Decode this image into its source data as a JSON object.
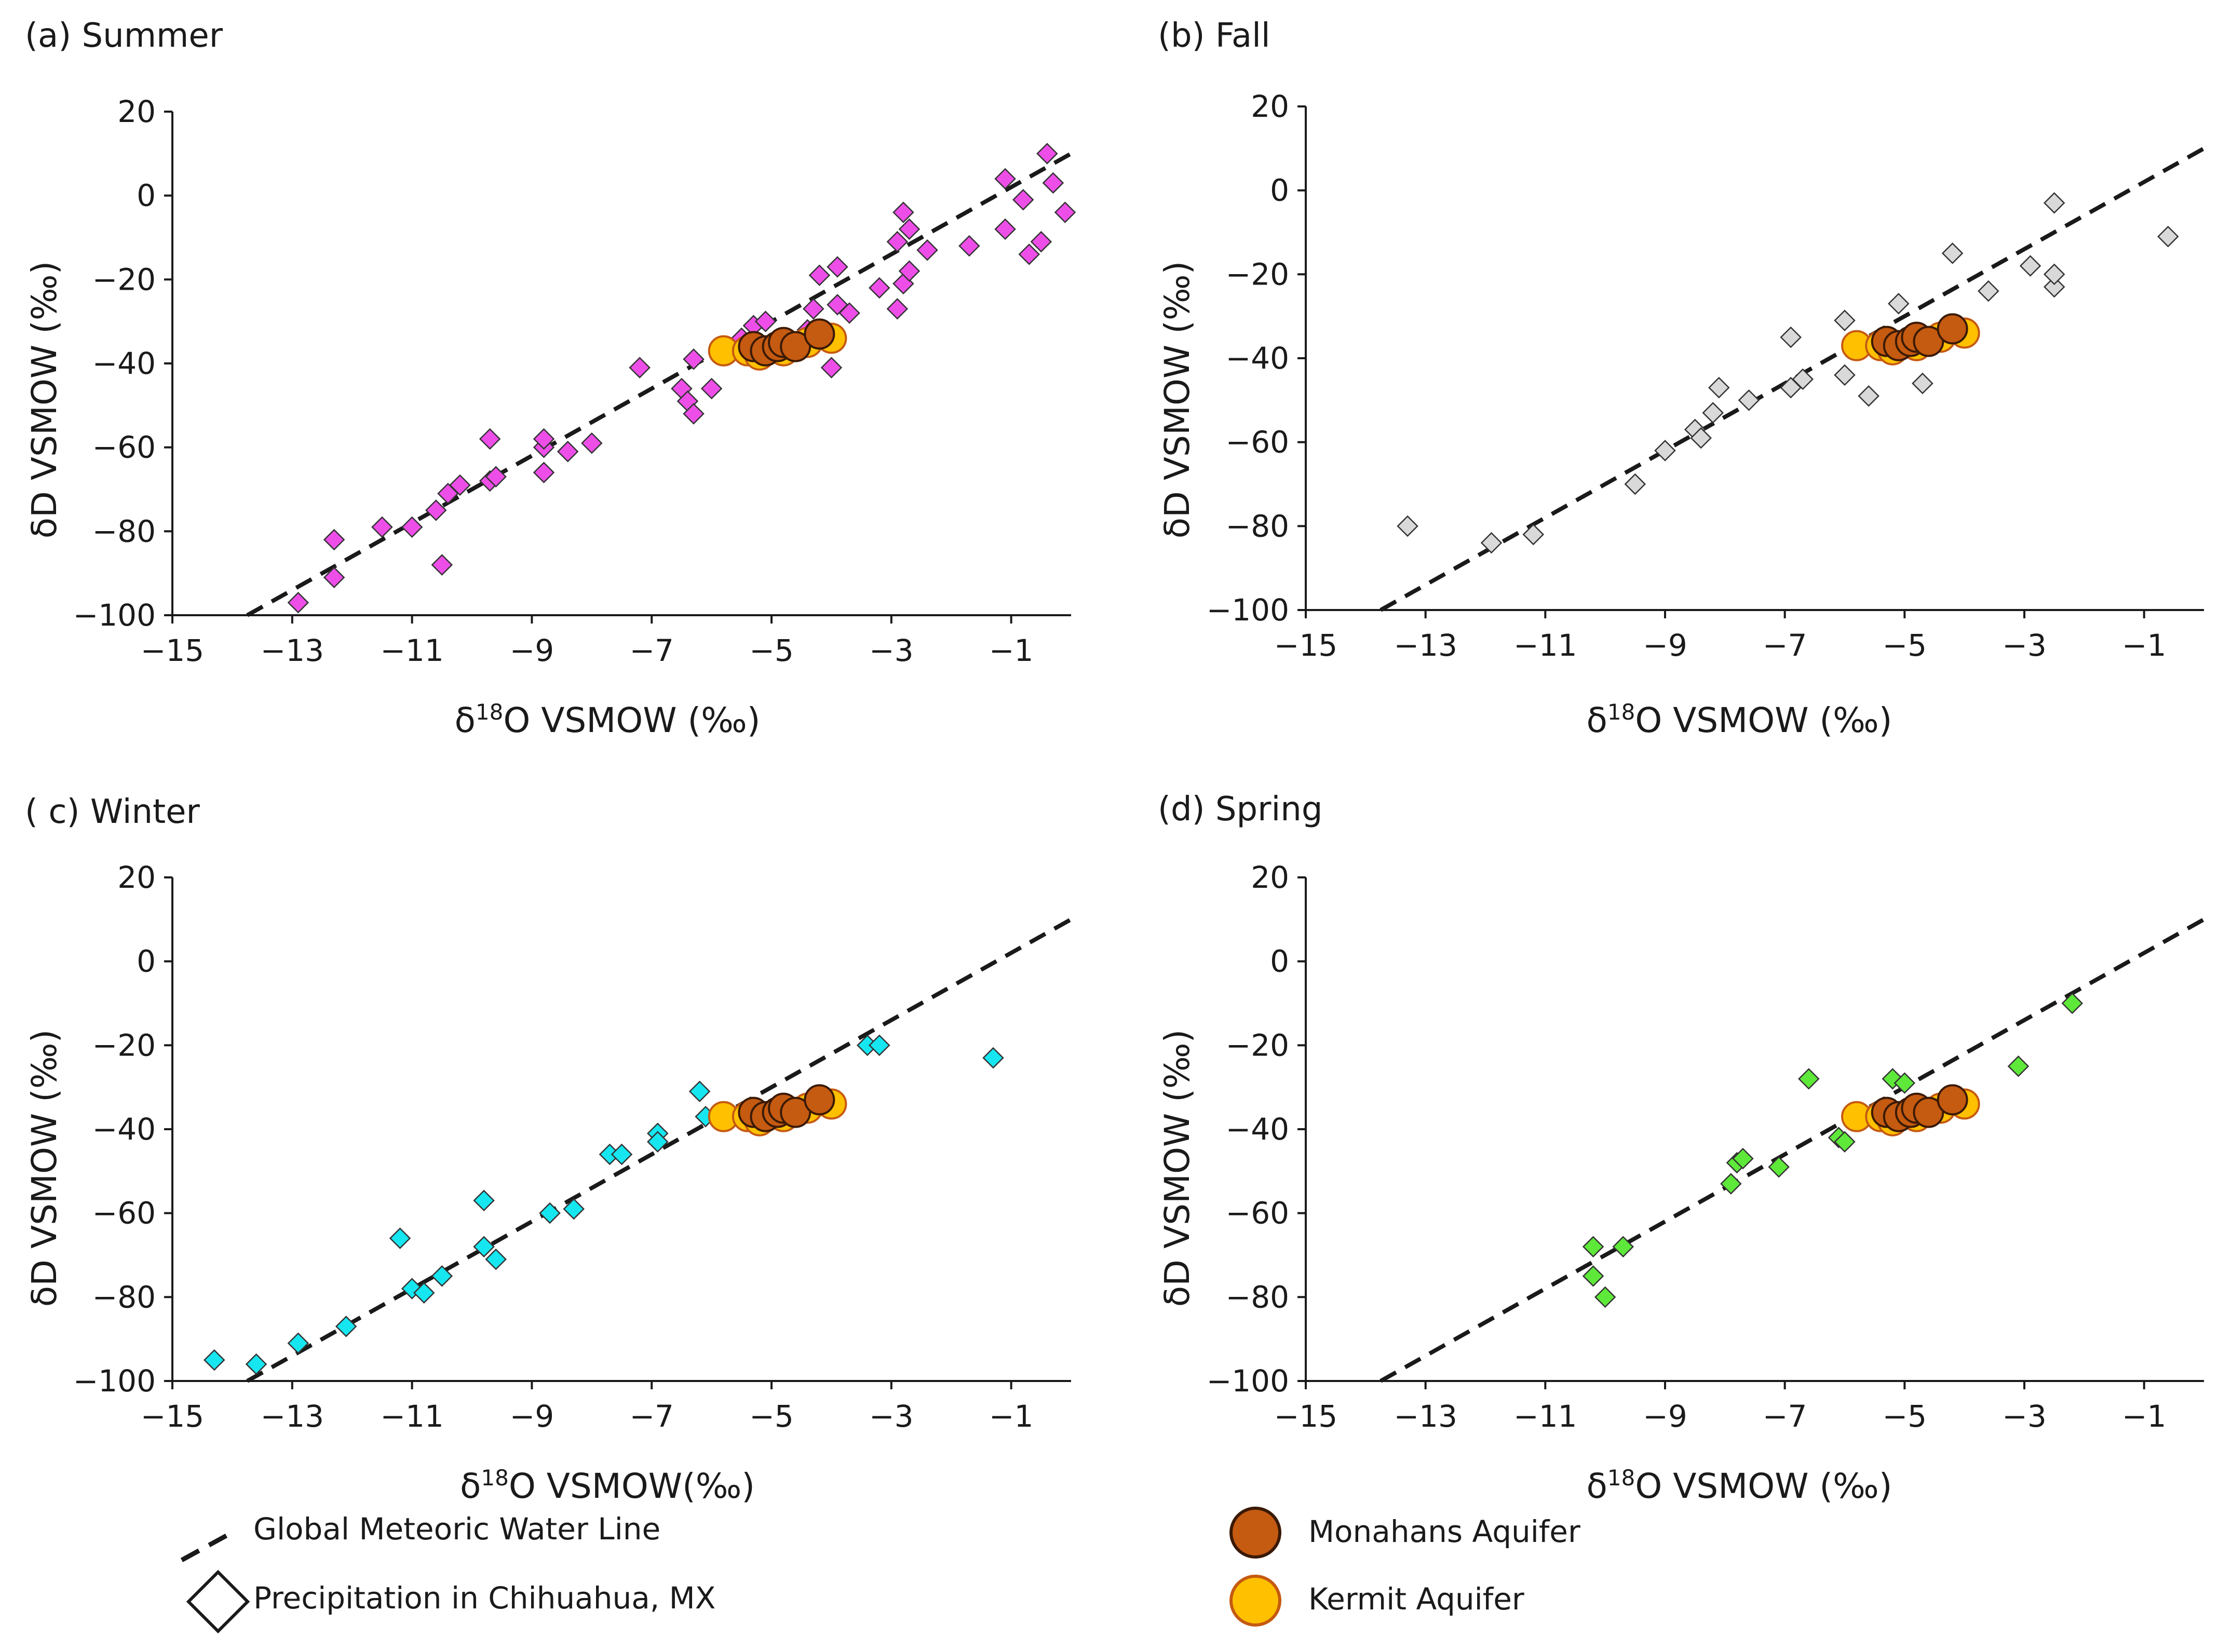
{
  "figure": {
    "legend": {
      "gmwl_label": "Global Meteoric Water Line",
      "precip_label": "Precipitation in Chihuahua, MX",
      "monahans_label": "Monahans Aquifer",
      "kermit_label": "Kermit Aquifer"
    },
    "colors": {
      "monahans_fill": "#c55a11",
      "monahans_stroke": "#3a1a05",
      "kermit_fill": "#ffc000",
      "kermit_stroke": "#c55a11",
      "gmwl": "#1a1a1a"
    }
  },
  "chart_data": [
    {
      "type": "scatter",
      "panel": "(a) Summer",
      "title": "Summer",
      "tag": "(a)",
      "xlabel_prefix": "δ",
      "xlabel_sup": "18",
      "xlabel_suffix": "O VSMOW (‰)",
      "ylabel": "δD VSMOW (‰)",
      "xlim": [
        -15,
        0
      ],
      "ylim": [
        -100,
        20
      ],
      "xticks": [
        -15,
        -13,
        -11,
        -9,
        -7,
        -5,
        -3,
        -1
      ],
      "yticks": [
        20,
        0,
        -20,
        -40,
        -60,
        -80,
        -100
      ],
      "gmwl": {
        "slope": 8,
        "intercept": 10
      },
      "precipitation_color": "#ee4ee8",
      "precipitation": [
        [
          -12.9,
          -97
        ],
        [
          -12.3,
          -91
        ],
        [
          -12.3,
          -82
        ],
        [
          -11.5,
          -79
        ],
        [
          -11.0,
          -79
        ],
        [
          -10.6,
          -75
        ],
        [
          -10.5,
          -88
        ],
        [
          -10.4,
          -71
        ],
        [
          -10.2,
          -69
        ],
        [
          -9.7,
          -68
        ],
        [
          -9.7,
          -58
        ],
        [
          -9.6,
          -67
        ],
        [
          -8.8,
          -66
        ],
        [
          -8.8,
          -60
        ],
        [
          -8.8,
          -58
        ],
        [
          -8.4,
          -61
        ],
        [
          -8.0,
          -59
        ],
        [
          -7.2,
          -41
        ],
        [
          -6.5,
          -46
        ],
        [
          -6.4,
          -49
        ],
        [
          -6.3,
          -39
        ],
        [
          -6.3,
          -52
        ],
        [
          -6.0,
          -46
        ],
        [
          -5.8,
          -37
        ],
        [
          -5.5,
          -34
        ],
        [
          -5.3,
          -31
        ],
        [
          -5.1,
          -30
        ],
        [
          -4.5,
          -34
        ],
        [
          -4.4,
          -32
        ],
        [
          -4.3,
          -27
        ],
        [
          -4.2,
          -19
        ],
        [
          -4.0,
          -41
        ],
        [
          -3.9,
          -17
        ],
        [
          -3.9,
          -26
        ],
        [
          -3.7,
          -28
        ],
        [
          -3.2,
          -22
        ],
        [
          -2.9,
          -27
        ],
        [
          -2.9,
          -11
        ],
        [
          -2.8,
          -4
        ],
        [
          -2.8,
          -21
        ],
        [
          -2.7,
          -18
        ],
        [
          -2.7,
          -8
        ],
        [
          -2.4,
          -13
        ],
        [
          -1.7,
          -12
        ],
        [
          -1.1,
          4
        ],
        [
          -1.1,
          -8
        ],
        [
          -0.8,
          -1
        ],
        [
          -0.7,
          -14
        ],
        [
          -0.5,
          -11
        ],
        [
          -0.4,
          10
        ],
        [
          -0.3,
          3
        ],
        [
          -0.1,
          -4
        ]
      ],
      "kermit": [
        [
          -5.8,
          -37
        ],
        [
          -5.4,
          -37
        ],
        [
          -5.2,
          -38
        ],
        [
          -4.8,
          -37
        ],
        [
          -4.4,
          -35
        ],
        [
          -4.0,
          -34
        ]
      ],
      "monahans": [
        [
          -5.3,
          -36
        ],
        [
          -5.1,
          -37
        ],
        [
          -4.9,
          -36
        ],
        [
          -4.8,
          -35
        ],
        [
          -4.6,
          -36
        ],
        [
          -4.2,
          -33
        ]
      ]
    },
    {
      "type": "scatter",
      "panel": "(b) Fall",
      "title": "Fall",
      "tag": "(b)",
      "xlabel_prefix": "δ",
      "xlabel_sup": "18",
      "xlabel_suffix": "O VSMOW (‰)",
      "ylabel": "δD VSMOW (‰)",
      "xlim": [
        -15,
        0
      ],
      "ylim": [
        -100,
        20
      ],
      "xticks": [
        -15,
        -13,
        -11,
        -9,
        -7,
        -5,
        -3,
        -1
      ],
      "yticks": [
        20,
        0,
        -20,
        -40,
        -60,
        -80,
        -100
      ],
      "gmwl": {
        "slope": 8,
        "intercept": 10
      },
      "precipitation_color": "#d9d9d9",
      "precipitation": [
        [
          -13.3,
          -80
        ],
        [
          -11.9,
          -84
        ],
        [
          -11.2,
          -82
        ],
        [
          -9.5,
          -70
        ],
        [
          -9.0,
          -62
        ],
        [
          -8.5,
          -57
        ],
        [
          -8.4,
          -59
        ],
        [
          -8.2,
          -53
        ],
        [
          -8.1,
          -47
        ],
        [
          -7.6,
          -50
        ],
        [
          -6.9,
          -35
        ],
        [
          -6.9,
          -47
        ],
        [
          -6.7,
          -45
        ],
        [
          -6.0,
          -31
        ],
        [
          -6.0,
          -44
        ],
        [
          -5.6,
          -49
        ],
        [
          -5.1,
          -27
        ],
        [
          -4.7,
          -46
        ],
        [
          -4.2,
          -15
        ],
        [
          -3.6,
          -24
        ],
        [
          -2.9,
          -18
        ],
        [
          -2.5,
          -3
        ],
        [
          -2.5,
          -23
        ],
        [
          -2.5,
          -20
        ],
        [
          -0.6,
          -11
        ]
      ],
      "kermit": [
        [
          -5.8,
          -37
        ],
        [
          -5.4,
          -37
        ],
        [
          -5.2,
          -38
        ],
        [
          -4.8,
          -37
        ],
        [
          -4.4,
          -35
        ],
        [
          -4.0,
          -34
        ]
      ],
      "monahans": [
        [
          -5.3,
          -36
        ],
        [
          -5.1,
          -37
        ],
        [
          -4.9,
          -36
        ],
        [
          -4.8,
          -35
        ],
        [
          -4.6,
          -36
        ],
        [
          -4.2,
          -33
        ]
      ]
    },
    {
      "type": "scatter",
      "panel": "( c) Winter",
      "title": "Winter",
      "tag": "( c)",
      "xlabel_prefix": "δ",
      "xlabel_sup": "18",
      "xlabel_suffix": "O VSMOW(‰)",
      "ylabel": "δD VSMOW (‰)",
      "xlim": [
        -15,
        0
      ],
      "ylim": [
        -100,
        20
      ],
      "xticks": [
        -15,
        -13,
        -11,
        -9,
        -7,
        -5,
        -3,
        -1
      ],
      "yticks": [
        20,
        0,
        -20,
        -40,
        -60,
        -80,
        -100
      ],
      "gmwl": {
        "slope": 8,
        "intercept": 10
      },
      "precipitation_color": "#16e6f0",
      "precipitation": [
        [
          -14.3,
          -95
        ],
        [
          -13.6,
          -96
        ],
        [
          -12.9,
          -91
        ],
        [
          -12.1,
          -87
        ],
        [
          -11.2,
          -66
        ],
        [
          -11.0,
          -78
        ],
        [
          -10.8,
          -79
        ],
        [
          -10.5,
          -75
        ],
        [
          -9.8,
          -57
        ],
        [
          -9.8,
          -68
        ],
        [
          -9.6,
          -71
        ],
        [
          -8.7,
          -60
        ],
        [
          -8.3,
          -59
        ],
        [
          -7.7,
          -46
        ],
        [
          -7.5,
          -46
        ],
        [
          -6.9,
          -41
        ],
        [
          -6.9,
          -43
        ],
        [
          -6.2,
          -31
        ],
        [
          -6.1,
          -37
        ],
        [
          -3.4,
          -20
        ],
        [
          -3.2,
          -20
        ],
        [
          -1.3,
          -23
        ]
      ],
      "kermit": [
        [
          -5.8,
          -37
        ],
        [
          -5.4,
          -37
        ],
        [
          -5.2,
          -38
        ],
        [
          -4.8,
          -37
        ],
        [
          -4.4,
          -35
        ],
        [
          -4.0,
          -34
        ]
      ],
      "monahans": [
        [
          -5.3,
          -36
        ],
        [
          -5.1,
          -37
        ],
        [
          -4.9,
          -36
        ],
        [
          -4.8,
          -35
        ],
        [
          -4.6,
          -36
        ],
        [
          -4.2,
          -33
        ]
      ]
    },
    {
      "type": "scatter",
      "panel": "(d) Spring",
      "title": "Spring",
      "tag": "(d)",
      "xlabel_prefix": "δ",
      "xlabel_sup": "18",
      "xlabel_suffix": "O VSMOW (‰)",
      "ylabel": "δD VSMOW (‰)",
      "xlim": [
        -15,
        0
      ],
      "ylim": [
        -100,
        20
      ],
      "xticks": [
        -15,
        -13,
        -11,
        -9,
        -7,
        -5,
        -3,
        -1
      ],
      "yticks": [
        20,
        0,
        -20,
        -40,
        -60,
        -80,
        -100
      ],
      "gmwl": {
        "slope": 8,
        "intercept": 10
      },
      "precipitation_color": "#5ee83a",
      "precipitation": [
        [
          -10.2,
          -68
        ],
        [
          -10.2,
          -75
        ],
        [
          -10.0,
          -80
        ],
        [
          -9.7,
          -68
        ],
        [
          -7.9,
          -53
        ],
        [
          -7.8,
          -48
        ],
        [
          -7.7,
          -47
        ],
        [
          -7.1,
          -49
        ],
        [
          -6.6,
          -28
        ],
        [
          -6.1,
          -42
        ],
        [
          -6.0,
          -43
        ],
        [
          -5.2,
          -28
        ],
        [
          -5.0,
          -29
        ],
        [
          -3.1,
          -25
        ],
        [
          -2.2,
          -10
        ]
      ],
      "kermit": [
        [
          -5.8,
          -37
        ],
        [
          -5.4,
          -37
        ],
        [
          -5.2,
          -38
        ],
        [
          -4.8,
          -37
        ],
        [
          -4.4,
          -35
        ],
        [
          -4.0,
          -34
        ]
      ],
      "monahans": [
        [
          -5.3,
          -36
        ],
        [
          -5.1,
          -37
        ],
        [
          -4.9,
          -36
        ],
        [
          -4.8,
          -35
        ],
        [
          -4.6,
          -36
        ],
        [
          -4.2,
          -33
        ]
      ]
    }
  ]
}
